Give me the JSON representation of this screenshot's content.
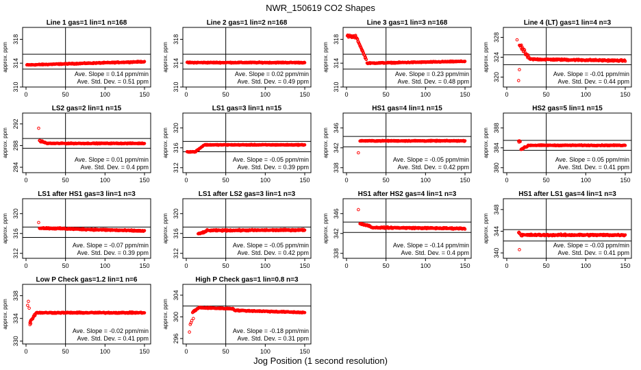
{
  "figure": {
    "title": "NWR_150619  CO2 Shapes",
    "xlabel": "Jog Position (1 second resolution)"
  },
  "colors": {
    "points": "#ff0000",
    "axes": "#000000",
    "background": "#ffffff"
  },
  "chart_data": [
    {
      "type": "scatter",
      "title": "Line 1 gas=1 lin=1 n=168",
      "ylabel": "approx. ppm",
      "xlim": [
        0,
        150
      ],
      "ylim": [
        310,
        320
      ],
      "xticks": [
        0,
        50,
        100,
        150
      ],
      "yticks": [
        310,
        314,
        318
      ],
      "ref_lines": {
        "x": 50,
        "y": [
          313.0,
          315.5
        ]
      },
      "annotation": [
        "Ave. Slope = 0.14  ppm/min",
        "Ave. Std. Dev. = 0.51  ppm"
      ],
      "segments": [
        {
          "x0": 1,
          "x1": 150,
          "y0": 313.7,
          "y1": 314.25,
          "noise": 0.12
        }
      ]
    },
    {
      "type": "scatter",
      "title": "Line 2 gas=1 lin=2 n=168",
      "ylabel": "approx. ppm",
      "xlim": [
        0,
        150
      ],
      "ylim": [
        310,
        320
      ],
      "xticks": [
        0,
        50,
        100,
        150
      ],
      "yticks": [
        310,
        314,
        318
      ],
      "ref_lines": {
        "x": 50,
        "y": [
          313.0,
          315.5
        ]
      },
      "annotation": [
        "Ave. Slope = 0.02  ppm/min",
        "Ave. Std. Dev. = 0.49  ppm"
      ],
      "segments": [
        {
          "x0": 1,
          "x1": 150,
          "y0": 314.1,
          "y1": 314.1,
          "noise": 0.12
        }
      ]
    },
    {
      "type": "scatter",
      "title": "Line 3 gas=1 lin=3 n=168",
      "ylabel": "approx. ppm",
      "xlim": [
        0,
        150
      ],
      "ylim": [
        310,
        320
      ],
      "xticks": [
        0,
        50,
        100,
        150
      ],
      "yticks": [
        310,
        314,
        318
      ],
      "ref_lines": {
        "x": 50,
        "y": [
          313.0,
          315.5
        ]
      },
      "annotation": [
        "Ave. Slope = 0.23  ppm/min",
        "Ave. Std. Dev. = 0.48  ppm"
      ],
      "segments": [
        {
          "x0": 1,
          "x1": 12,
          "y0": 318.5,
          "y1": 318.4,
          "noise": 0.35
        },
        {
          "x0": 13,
          "x1": 25,
          "y0": 318.2,
          "y1": 314.6,
          "noise": 0.2
        },
        {
          "x0": 26,
          "x1": 150,
          "y0": 314.0,
          "y1": 314.3,
          "noise": 0.12
        }
      ]
    },
    {
      "type": "scatter",
      "title": "Line 4 (LT) gas=1 lin=4 n=3",
      "ylabel": "approx. ppm",
      "xlim": [
        0,
        150
      ],
      "ylim": [
        318,
        330
      ],
      "xticks": [
        0,
        50,
        100,
        150
      ],
      "yticks": [
        320,
        324,
        328
      ],
      "ref_lines": {
        "x": 50,
        "y": [
          322.5,
          324.5
        ]
      },
      "annotation": [
        "Ave. Slope = -0.01  ppm/min",
        "Ave. Std. Dev. = 0.44  ppm"
      ],
      "segments": [
        {
          "x0": 16,
          "x1": 28,
          "y0": 326.5,
          "y1": 323.8,
          "noise": 0.6
        },
        {
          "x0": 29,
          "x1": 150,
          "y0": 323.6,
          "y1": 323.3,
          "noise": 0.22
        }
      ],
      "points": [
        {
          "x": 13,
          "y": 327.5
        },
        {
          "x": 16,
          "y": 321.5
        },
        {
          "x": 15,
          "y": 319.3
        }
      ]
    },
    {
      "type": "scatter",
      "title": "LS2 gas=2 lin=1 n=15",
      "ylabel": "approx. ppm",
      "xlim": [
        0,
        150
      ],
      "ylim": [
        283,
        294
      ],
      "xticks": [
        0,
        50,
        100,
        150
      ],
      "yticks": [
        284,
        288,
        292
      ],
      "ref_lines": {
        "x": 50,
        "y": [
          287.5,
          289.3
        ]
      },
      "annotation": [
        "Ave. Slope = 0.01  ppm/min",
        "Ave. Std. Dev. = 0.4  ppm"
      ],
      "segments": [
        {
          "x0": 17,
          "x1": 25,
          "y0": 288.9,
          "y1": 288.5,
          "noise": 0.2
        },
        {
          "x0": 26,
          "x1": 150,
          "y0": 288.4,
          "y1": 288.4,
          "noise": 0.12
        }
      ],
      "points": [
        {
          "x": 16,
          "y": 291.2
        }
      ]
    },
    {
      "type": "scatter",
      "title": "LS1 gas=3 lin=1 n=15",
      "ylabel": "approx. ppm",
      "xlim": [
        0,
        150
      ],
      "ylim": [
        311,
        323
      ],
      "xticks": [
        0,
        50,
        100,
        150
      ],
      "yticks": [
        312,
        316,
        320
      ],
      "ref_lines": {
        "x": 50,
        "y": [
          315.2,
          317.3
        ]
      },
      "annotation": [
        "Ave. Slope = -0.05  ppm/min",
        "Ave. Std. Dev. = 0.39  ppm"
      ],
      "segments": [
        {
          "x0": 1,
          "x1": 12,
          "y0": 315.2,
          "y1": 315.2,
          "noise": 0.12
        },
        {
          "x0": 13,
          "x1": 22,
          "y0": 315.4,
          "y1": 316.5,
          "noise": 0.15
        },
        {
          "x0": 23,
          "x1": 150,
          "y0": 316.6,
          "y1": 316.6,
          "noise": 0.12
        }
      ]
    },
    {
      "type": "scatter",
      "title": "HS1 gas=4 lin=1 n=15",
      "ylabel": "approx. ppm",
      "xlim": [
        0,
        150
      ],
      "ylim": [
        337,
        349
      ],
      "xticks": [
        0,
        50,
        100,
        150
      ],
      "yticks": [
        338,
        342,
        346
      ],
      "ref_lines": {
        "x": 50,
        "y": [
          342.2,
          344.3
        ]
      },
      "annotation": [
        "Ave. Slope = -0.05  ppm/min",
        "Ave. Std. Dev. = 0.42  ppm"
      ],
      "segments": [
        {
          "x0": 17,
          "x1": 150,
          "y0": 343.4,
          "y1": 343.4,
          "noise": 0.13
        }
      ],
      "points": [
        {
          "x": 15,
          "y": 341.0
        }
      ]
    },
    {
      "type": "scatter",
      "title": "HS2 gas=5 lin=1 n=15",
      "ylabel": "approx. ppm",
      "xlim": [
        0,
        150
      ],
      "ylim": [
        379,
        391
      ],
      "xticks": [
        0,
        50,
        100,
        150
      ],
      "yticks": [
        380,
        384,
        388
      ],
      "ref_lines": {
        "x": 50,
        "y": [
          383.5,
          385.5
        ]
      },
      "annotation": [
        "Ave. Slope = 0.05  ppm/min",
        "Ave. Std. Dev. = 0.41  ppm"
      ],
      "segments": [
        {
          "x0": 15,
          "x1": 17,
          "y0": 385.3,
          "y1": 385.4,
          "noise": 0.25
        },
        {
          "x0": 18,
          "x1": 26,
          "y0": 383.7,
          "y1": 384.3,
          "noise": 0.2
        },
        {
          "x0": 27,
          "x1": 150,
          "y0": 384.5,
          "y1": 384.5,
          "noise": 0.12
        }
      ]
    },
    {
      "type": "scatter",
      "title": "LS1 after HS1 gas=3 lin=1 n=3",
      "ylabel": "approx. ppm",
      "xlim": [
        0,
        150
      ],
      "ylim": [
        311,
        323
      ],
      "xticks": [
        0,
        50,
        100,
        150
      ],
      "yticks": [
        312,
        316,
        320
      ],
      "ref_lines": {
        "x": 50,
        "y": [
          315.2,
          317.3
        ]
      },
      "annotation": [
        "Ave. Slope = -0.07  ppm/min",
        "Ave. Std. Dev. = 0.39  ppm"
      ],
      "segments": [
        {
          "x0": 17,
          "x1": 150,
          "y0": 317.1,
          "y1": 316.5,
          "noise": 0.2
        }
      ],
      "points": [
        {
          "x": 16,
          "y": 318.2
        }
      ]
    },
    {
      "type": "scatter",
      "title": "LS1 after LS2 gas=3 lin=1 n=3",
      "ylabel": "approx. ppm",
      "xlim": [
        0,
        150
      ],
      "ylim": [
        311,
        323
      ],
      "xticks": [
        0,
        50,
        100,
        150
      ],
      "yticks": [
        312,
        316,
        320
      ],
      "ref_lines": {
        "x": 50,
        "y": [
          315.2,
          317.3
        ]
      },
      "annotation": [
        "Ave. Slope = -0.05  ppm/min",
        "Ave. Std. Dev. = 0.42  ppm"
      ],
      "segments": [
        {
          "x0": 15,
          "x1": 25,
          "y0": 315.9,
          "y1": 316.4,
          "noise": 0.2
        },
        {
          "x0": 26,
          "x1": 150,
          "y0": 316.6,
          "y1": 316.7,
          "noise": 0.2
        }
      ]
    },
    {
      "type": "scatter",
      "title": "HS1 after HS2 gas=4 lin=1 n=3",
      "ylabel": "approx. ppm",
      "xlim": [
        0,
        150
      ],
      "ylim": [
        337,
        349
      ],
      "xticks": [
        0,
        50,
        100,
        150
      ],
      "yticks": [
        338,
        342,
        346
      ],
      "ref_lines": {
        "x": 50,
        "y": [
          342.2,
          344.3
        ]
      },
      "annotation": [
        "Ave. Slope = -0.14  ppm/min",
        "Ave. Std. Dev. = 0.4  ppm"
      ],
      "segments": [
        {
          "x0": 17,
          "x1": 30,
          "y0": 344.0,
          "y1": 343.5,
          "noise": 0.2
        },
        {
          "x0": 31,
          "x1": 150,
          "y0": 343.2,
          "y1": 343.0,
          "noise": 0.2
        }
      ],
      "points": [
        {
          "x": 15,
          "y": 346.8
        }
      ]
    },
    {
      "type": "scatter",
      "title": "HS1 after LS1 gas=4 lin=1 n=3",
      "ylabel": "approx. ppm",
      "xlim": [
        0,
        150
      ],
      "ylim": [
        339,
        350
      ],
      "xticks": [
        0,
        50,
        100,
        150
      ],
      "yticks": [
        340,
        344,
        348
      ],
      "ref_lines": {
        "x": 50,
        "y": [
          342.2,
          344.3
        ]
      },
      "annotation": [
        "Ave. Slope = -0.03  ppm/min",
        "Ave. Std. Dev. = 0.41  ppm"
      ],
      "segments": [
        {
          "x0": 15,
          "x1": 17,
          "y0": 343.8,
          "y1": 343.5,
          "noise": 0.2
        },
        {
          "x0": 18,
          "x1": 150,
          "y0": 343.3,
          "y1": 343.3,
          "noise": 0.22
        }
      ],
      "points": [
        {
          "x": 16,
          "y": 340.6
        }
      ]
    },
    {
      "type": "scatter",
      "title": "Low P Check gas=1.2 lin=1 n=6",
      "ylabel": "approx. ppm",
      "xlim": [
        0,
        150
      ],
      "ylim": [
        329.5,
        340
      ],
      "xticks": [
        0,
        50,
        100,
        150
      ],
      "yticks": [
        330,
        334,
        338
      ],
      "ref_lines": {
        "x": 50,
        "y": []
      },
      "annotation": [
        "Ave. Slope = -0.02  ppm/min",
        "Ave. Std. Dev. = 0.41  ppm"
      ],
      "segments": [
        {
          "x0": 5,
          "x1": 12,
          "y0": 333.4,
          "y1": 334.8,
          "noise": 0.3
        },
        {
          "x0": 13,
          "x1": 150,
          "y0": 335.0,
          "y1": 335.0,
          "noise": 0.15
        }
      ],
      "points": [
        {
          "x": 3,
          "y": 337.0
        },
        {
          "x": 2,
          "y": 336.3
        },
        {
          "x": 4,
          "y": 335.8
        },
        {
          "x": 5,
          "y": 332.9
        },
        {
          "x": 6,
          "y": 333.1
        }
      ]
    },
    {
      "type": "scatter",
      "title": "High P Check gas=1 lin=0.8 n=3",
      "ylabel": "approx. ppm",
      "xlim": [
        0,
        150
      ],
      "ylim": [
        295,
        306
      ],
      "xticks": [
        0,
        50,
        100,
        150
      ],
      "yticks": [
        296,
        300,
        304
      ],
      "ref_lines": {
        "x": 50,
        "y": [
          302.0
        ]
      },
      "annotation": [
        "Ave. Slope = -0.18  ppm/min",
        "Ave. Std. Dev. = 0.31  ppm"
      ],
      "segments": [
        {
          "x0": 8,
          "x1": 15,
          "y0": 300.8,
          "y1": 301.6,
          "noise": 0.25
        },
        {
          "x0": 16,
          "x1": 60,
          "y0": 301.7,
          "y1": 301.5,
          "noise": 0.15
        },
        {
          "x0": 61,
          "x1": 150,
          "y0": 301.2,
          "y1": 300.8,
          "noise": 0.15
        }
      ],
      "points": [
        {
          "x": 4,
          "y": 297.2
        },
        {
          "x": 5,
          "y": 298.6
        },
        {
          "x": 6,
          "y": 298.9
        },
        {
          "x": 7,
          "y": 299.3
        },
        {
          "x": 9,
          "y": 299.7
        }
      ]
    }
  ]
}
